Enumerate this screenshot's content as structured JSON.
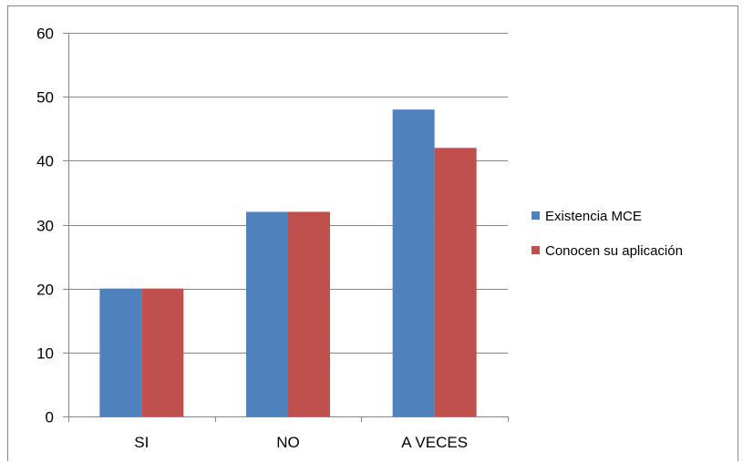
{
  "chart_data": {
    "type": "bar",
    "categories": [
      "SI",
      "NO",
      "A VECES"
    ],
    "series": [
      {
        "name": "Existencia MCE",
        "values": [
          20,
          32,
          48
        ],
        "color": "#4f81bd"
      },
      {
        "name": "Conocen su aplicación",
        "values": [
          20,
          32,
          42
        ],
        "color": "#c0504d"
      }
    ],
    "ylim": [
      0,
      60
    ],
    "yticks": [
      0,
      10,
      20,
      30,
      40,
      50,
      60
    ],
    "grid": true,
    "legend_position": "right",
    "title": "",
    "xlabel": "",
    "ylabel": ""
  }
}
